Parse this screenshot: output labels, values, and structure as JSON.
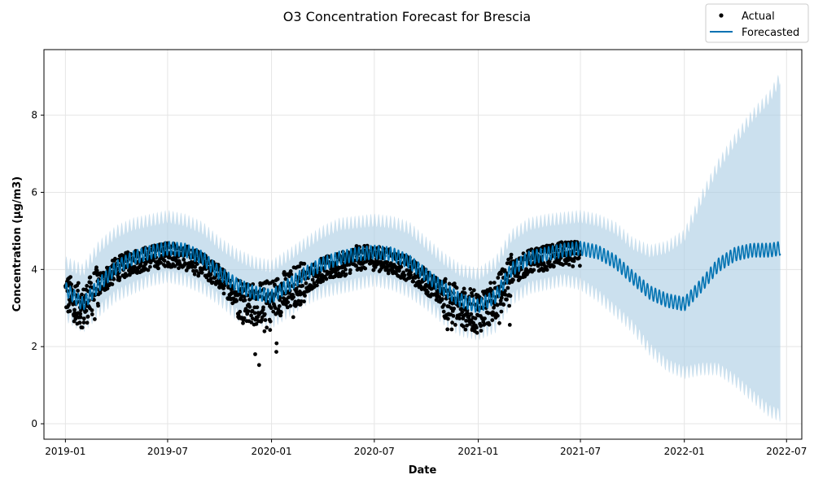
{
  "chart_data": {
    "type": "line",
    "title": "O3 Concentration Forecast for Brescia",
    "xlabel": "Date",
    "ylabel": "Concentration (µg/m3)",
    "x_ticks": [
      "2019-01",
      "2019-07",
      "2020-01",
      "2020-07",
      "2021-01",
      "2021-07",
      "2022-01",
      "2022-07"
    ],
    "y_ticks": [
      "0",
      "2",
      "4",
      "6",
      "8"
    ],
    "xlim": [
      "2018-11-24",
      "2022-07-28"
    ],
    "ylim": [
      -0.4,
      9.7
    ],
    "grid": true,
    "legend": "top-right",
    "colors": {
      "actual": "#000000",
      "forecast": "#0072B2",
      "interval": "#a9cce3",
      "grid": "#e5e5e5"
    },
    "series": [
      {
        "name": "Actual",
        "kind": "points",
        "date_range": [
          "2019-01-01",
          "2021-06-30"
        ],
        "approx_mean": [
          [
            "2019-01-01",
            3.4
          ],
          [
            "2019-02-01",
            3.0
          ],
          [
            "2019-03-01",
            3.6
          ],
          [
            "2019-04-01",
            4.0
          ],
          [
            "2019-05-01",
            4.2
          ],
          [
            "2019-06-01",
            4.3
          ],
          [
            "2019-07-01",
            4.4
          ],
          [
            "2019-08-01",
            4.3
          ],
          [
            "2019-09-01",
            4.1
          ],
          [
            "2019-10-01",
            3.8
          ],
          [
            "2019-11-01",
            3.3
          ],
          [
            "2019-12-01",
            3.1
          ],
          [
            "2020-01-01",
            3.2
          ],
          [
            "2020-02-01",
            3.5
          ],
          [
            "2020-03-01",
            3.7
          ],
          [
            "2020-04-01",
            4.0
          ],
          [
            "2020-05-01",
            4.1
          ],
          [
            "2020-06-01",
            4.3
          ],
          [
            "2020-07-01",
            4.3
          ],
          [
            "2020-08-01",
            4.2
          ],
          [
            "2020-09-01",
            4.0
          ],
          [
            "2020-10-01",
            3.7
          ],
          [
            "2020-11-01",
            3.3
          ],
          [
            "2020-12-01",
            3.0
          ],
          [
            "2021-01-01",
            2.9
          ],
          [
            "2021-02-01",
            3.2
          ],
          [
            "2021-03-01",
            3.9
          ],
          [
            "2021-04-01",
            4.2
          ],
          [
            "2021-05-01",
            4.3
          ],
          [
            "2021-06-01",
            4.4
          ]
        ],
        "min_value": 1.3,
        "max_value": 4.9
      },
      {
        "name": "Forecasted",
        "kind": "line",
        "values": [
          [
            "2019-01-01",
            3.5
          ],
          [
            "2019-02-01",
            3.1
          ],
          [
            "2019-03-01",
            3.6
          ],
          [
            "2019-04-01",
            4.05
          ],
          [
            "2019-05-01",
            4.3
          ],
          [
            "2019-06-01",
            4.45
          ],
          [
            "2019-07-01",
            4.55
          ],
          [
            "2019-08-01",
            4.5
          ],
          [
            "2019-09-01",
            4.3
          ],
          [
            "2019-10-01",
            3.9
          ],
          [
            "2019-11-01",
            3.6
          ],
          [
            "2019-12-01",
            3.4
          ],
          [
            "2020-01-01",
            3.3
          ],
          [
            "2020-02-01",
            3.6
          ],
          [
            "2020-03-01",
            3.9
          ],
          [
            "2020-04-01",
            4.15
          ],
          [
            "2020-05-01",
            4.3
          ],
          [
            "2020-06-01",
            4.4
          ],
          [
            "2020-07-01",
            4.45
          ],
          [
            "2020-08-01",
            4.4
          ],
          [
            "2020-09-01",
            4.2
          ],
          [
            "2020-10-01",
            3.85
          ],
          [
            "2020-11-01",
            3.5
          ],
          [
            "2020-12-01",
            3.2
          ],
          [
            "2021-01-01",
            3.05
          ],
          [
            "2021-02-01",
            3.3
          ],
          [
            "2021-03-01",
            4.0
          ],
          [
            "2021-04-01",
            4.3
          ],
          [
            "2021-05-01",
            4.4
          ],
          [
            "2021-06-01",
            4.5
          ],
          [
            "2021-07-01",
            4.55
          ],
          [
            "2021-08-01",
            4.45
          ],
          [
            "2021-09-01",
            4.2
          ],
          [
            "2021-10-01",
            3.8
          ],
          [
            "2021-11-01",
            3.4
          ],
          [
            "2021-12-01",
            3.2
          ],
          [
            "2022-01-01",
            3.1
          ],
          [
            "2022-02-01",
            3.6
          ],
          [
            "2022-03-01",
            4.1
          ],
          [
            "2022-04-01",
            4.4
          ],
          [
            "2022-05-01",
            4.5
          ],
          [
            "2022-06-01",
            4.5
          ],
          [
            "2022-06-20",
            4.55
          ]
        ],
        "weekly_oscillation": 0.18
      },
      {
        "name": "Uncertainty interval",
        "kind": "band",
        "upper": [
          [
            "2019-01-01",
            4.1
          ],
          [
            "2019-02-01",
            3.9
          ],
          [
            "2019-03-01",
            4.5
          ],
          [
            "2019-04-01",
            4.9
          ],
          [
            "2019-05-01",
            5.1
          ],
          [
            "2019-06-01",
            5.2
          ],
          [
            "2019-07-01",
            5.3
          ],
          [
            "2019-08-01",
            5.2
          ],
          [
            "2019-09-01",
            5.0
          ],
          [
            "2019-10-01",
            4.6
          ],
          [
            "2019-11-01",
            4.3
          ],
          [
            "2019-12-01",
            4.1
          ],
          [
            "2020-01-01",
            4.0
          ],
          [
            "2020-02-01",
            4.3
          ],
          [
            "2020-03-01",
            4.6
          ],
          [
            "2020-04-01",
            4.9
          ],
          [
            "2020-05-01",
            5.1
          ],
          [
            "2020-06-01",
            5.15
          ],
          [
            "2020-07-01",
            5.2
          ],
          [
            "2020-08-01",
            5.15
          ],
          [
            "2020-09-01",
            5.0
          ],
          [
            "2020-10-01",
            4.6
          ],
          [
            "2020-11-01",
            4.2
          ],
          [
            "2020-12-01",
            3.9
          ],
          [
            "2021-01-01",
            3.8
          ],
          [
            "2021-02-01",
            4.1
          ],
          [
            "2021-03-01",
            4.8
          ],
          [
            "2021-04-01",
            5.1
          ],
          [
            "2021-05-01",
            5.2
          ],
          [
            "2021-06-01",
            5.25
          ],
          [
            "2021-07-01",
            5.3
          ],
          [
            "2021-08-01",
            5.2
          ],
          [
            "2021-09-01",
            5.0
          ],
          [
            "2021-10-01",
            4.6
          ],
          [
            "2021-11-01",
            4.4
          ],
          [
            "2021-12-01",
            4.5
          ],
          [
            "2022-01-01",
            4.8
          ],
          [
            "2022-02-01",
            5.8
          ],
          [
            "2022-03-01",
            6.6
          ],
          [
            "2022-04-01",
            7.3
          ],
          [
            "2022-05-01",
            7.9
          ],
          [
            "2022-06-01",
            8.4
          ],
          [
            "2022-06-20",
            8.9
          ]
        ],
        "lower": [
          [
            "2019-01-01",
            2.9
          ],
          [
            "2019-02-01",
            2.6
          ],
          [
            "2019-03-01",
            3.0
          ],
          [
            "2019-04-01",
            3.4
          ],
          [
            "2019-05-01",
            3.6
          ],
          [
            "2019-06-01",
            3.8
          ],
          [
            "2019-07-01",
            3.9
          ],
          [
            "2019-08-01",
            3.8
          ],
          [
            "2019-09-01",
            3.6
          ],
          [
            "2019-10-01",
            3.3
          ],
          [
            "2019-11-01",
            2.9
          ],
          [
            "2019-12-01",
            2.8
          ],
          [
            "2020-01-01",
            2.7
          ],
          [
            "2020-02-01",
            3.0
          ],
          [
            "2020-03-01",
            3.3
          ],
          [
            "2020-04-01",
            3.5
          ],
          [
            "2020-05-01",
            3.6
          ],
          [
            "2020-06-01",
            3.7
          ],
          [
            "2020-07-01",
            3.8
          ],
          [
            "2020-08-01",
            3.7
          ],
          [
            "2020-09-01",
            3.5
          ],
          [
            "2020-10-01",
            3.2
          ],
          [
            "2020-11-01",
            2.8
          ],
          [
            "2020-12-01",
            2.5
          ],
          [
            "2021-01-01",
            2.4
          ],
          [
            "2021-02-01",
            2.6
          ],
          [
            "2021-03-01",
            3.3
          ],
          [
            "2021-04-01",
            3.6
          ],
          [
            "2021-05-01",
            3.7
          ],
          [
            "2021-06-01",
            3.8
          ],
          [
            "2021-07-01",
            3.7
          ],
          [
            "2021-08-01",
            3.4
          ],
          [
            "2021-09-01",
            3.0
          ],
          [
            "2021-10-01",
            2.6
          ],
          [
            "2021-11-01",
            2.0
          ],
          [
            "2021-12-01",
            1.6
          ],
          [
            "2022-01-01",
            1.4
          ],
          [
            "2022-02-01",
            1.5
          ],
          [
            "2022-03-01",
            1.5
          ],
          [
            "2022-04-01",
            1.2
          ],
          [
            "2022-05-01",
            0.8
          ],
          [
            "2022-06-01",
            0.4
          ],
          [
            "2022-06-20",
            0.3
          ]
        ]
      }
    ]
  }
}
